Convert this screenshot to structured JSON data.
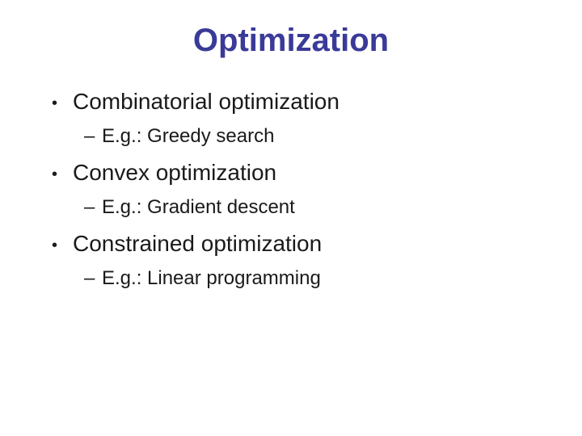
{
  "title": "Optimization",
  "title_color": "#3a3a99",
  "body_color": "#1a1a1a",
  "background_color": "#ffffff",
  "title_fontsize": 40,
  "top_fontsize": 28,
  "sub_fontsize": 24,
  "items": [
    {
      "label": "Combinatorial optimization",
      "sub": "E.g.: Greedy search"
    },
    {
      "label": "Convex optimization",
      "sub": "E.g.: Gradient descent"
    },
    {
      "label": "Constrained optimization",
      "sub": "E.g.: Linear programming"
    }
  ]
}
